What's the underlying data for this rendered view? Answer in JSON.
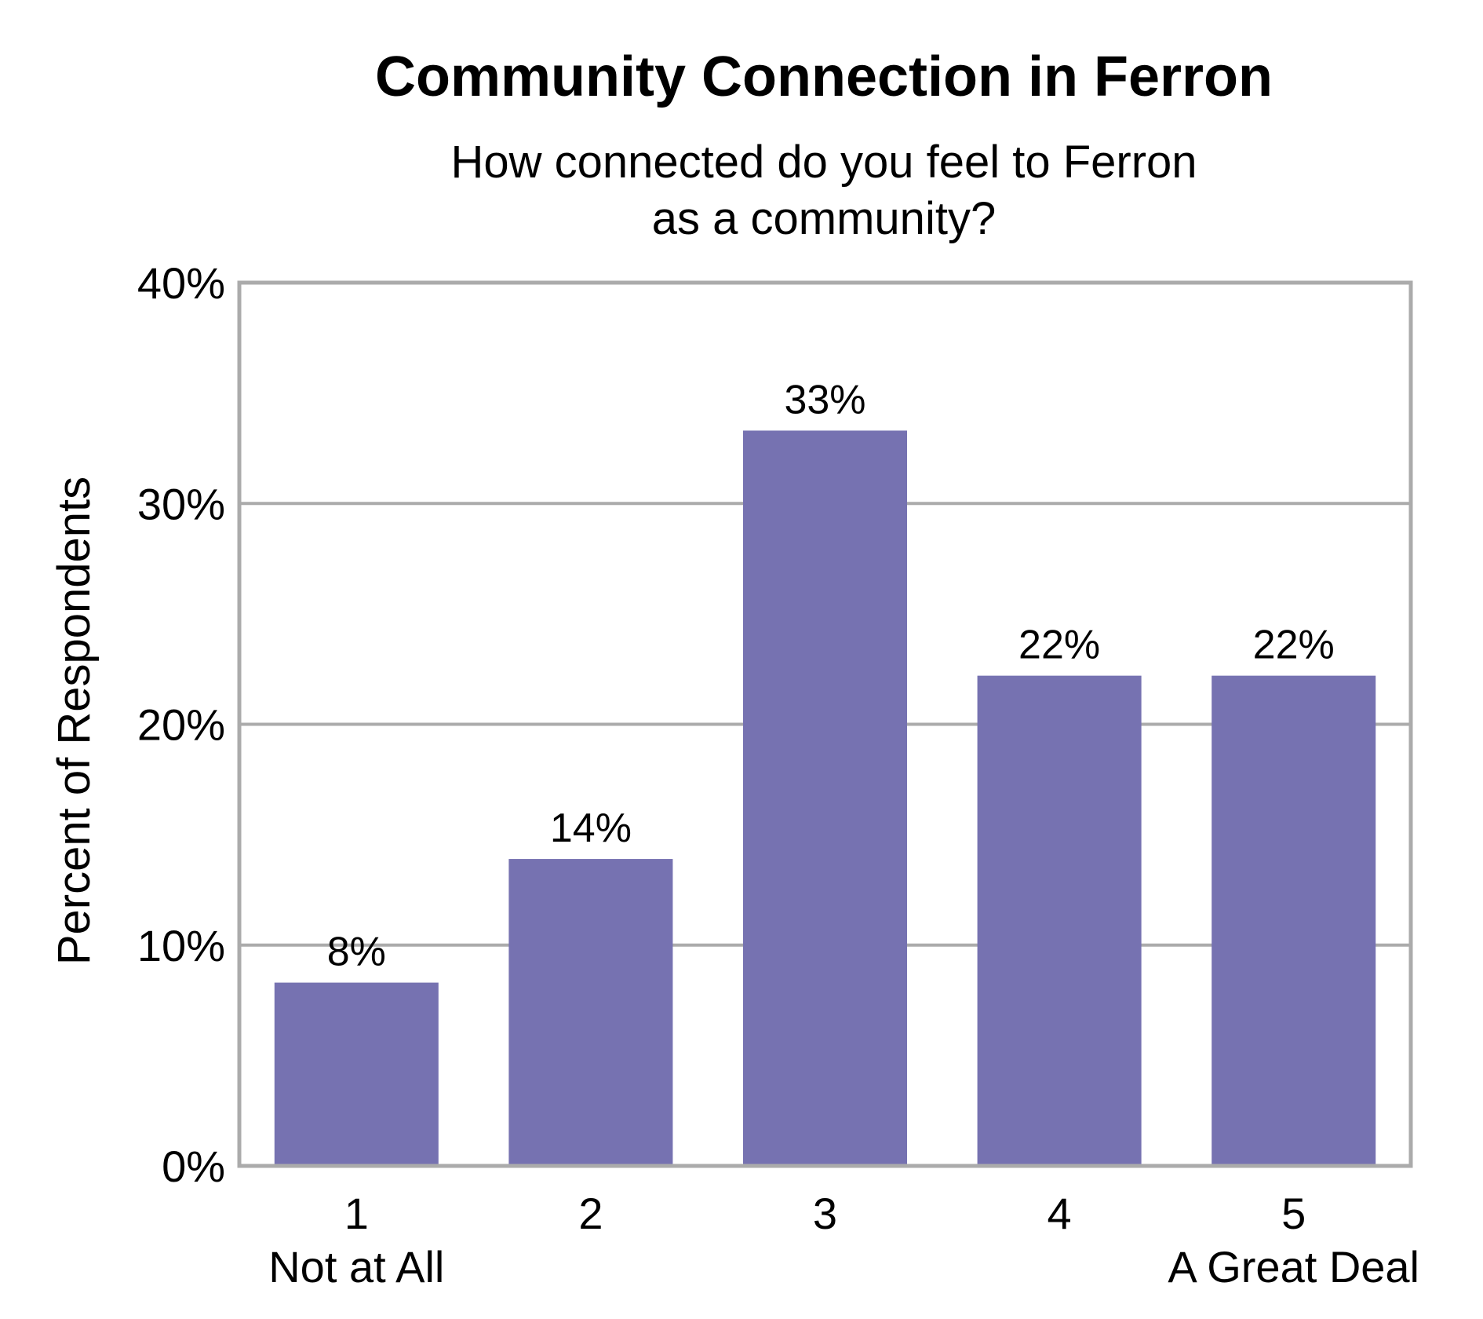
{
  "chart_data": {
    "type": "bar",
    "title": "Community Connection in Ferron",
    "subtitle_lines": [
      "How connected do you feel to Ferron",
      "as a community?"
    ],
    "ylabel": "Percent of Respondents",
    "xlabel": "",
    "categories": [
      "1",
      "2",
      "3",
      "4",
      "5"
    ],
    "category_sublabels": [
      "Not at All",
      "",
      "",
      "",
      "A Great Deal"
    ],
    "values": [
      8.3,
      13.9,
      33.3,
      22.2,
      22.2
    ],
    "data_labels": [
      "8%",
      "14%",
      "33%",
      "22%",
      "22%"
    ],
    "ylim": [
      0,
      40
    ],
    "yticks": [
      0,
      10,
      20,
      30,
      40
    ],
    "ytick_labels": [
      "0%",
      "10%",
      "20%",
      "30%",
      "40%"
    ],
    "grid": true,
    "legend": "none",
    "colors": {
      "bar": "#7672B1",
      "grid": "#ABABAB",
      "frame": "#ABABAB"
    }
  }
}
